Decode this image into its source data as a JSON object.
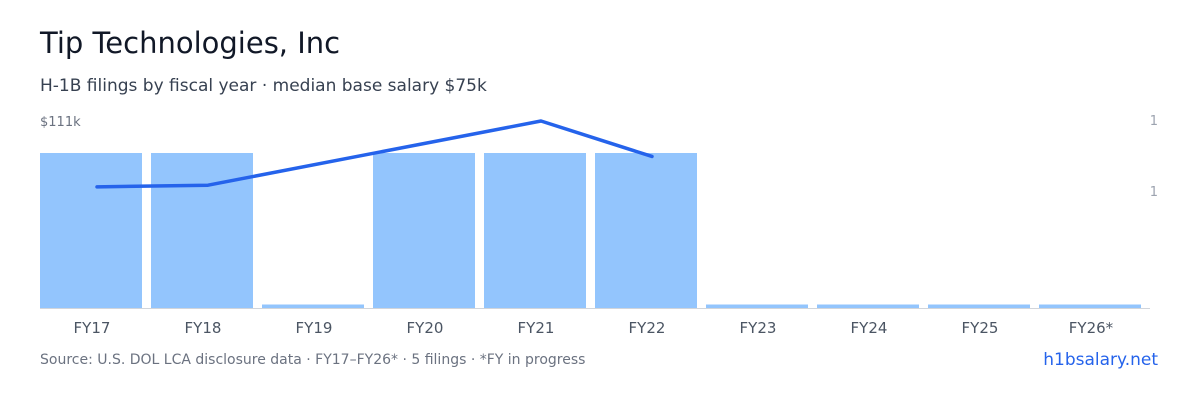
{
  "header": {
    "title": "Tip Technologies, Inc",
    "subtitle": "H-1B filings by fiscal year · median base salary $75k"
  },
  "chart_data": {
    "type": "bar",
    "categories": [
      "FY17",
      "FY18",
      "FY19",
      "FY20",
      "FY21",
      "FY22",
      "FY23",
      "FY24",
      "FY25",
      "FY26*"
    ],
    "series": [
      {
        "type": "bar",
        "axis": "right",
        "values": [
          1,
          1,
          0,
          1,
          1,
          1,
          0,
          0,
          0,
          0
        ]
      },
      {
        "type": "line",
        "axis": "left",
        "values": [
          72,
          73,
          null,
          null,
          111,
          90,
          null,
          null,
          null,
          null
        ],
        "connect_gaps": true
      }
    ],
    "left_axis": {
      "tick_labels": [
        "$111k"
      ]
    },
    "right_axis": {
      "tick_labels": [
        "1",
        "1"
      ]
    },
    "colors": {
      "bar": "#93c5fd",
      "line": "#2563eb",
      "axis": "#d1d5db",
      "tick_text": "#9ca3af",
      "label_text": "#4b5563"
    },
    "grid": false,
    "legend": "none"
  },
  "footer": {
    "source": "Source: U.S. DOL LCA disclosure data · FY17–FY26* · 5 filings · *FY in progress",
    "brand": "h1bsalary.net"
  }
}
